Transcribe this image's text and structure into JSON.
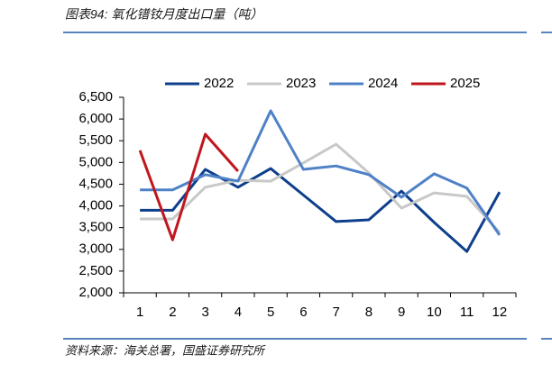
{
  "chart_data": {
    "type": "line",
    "title": "图表94: 氧化镨钕月度出口量（吨）",
    "source": "资料来源：海关总署，国盛证券研究所",
    "categories": [
      "1",
      "2",
      "3",
      "4",
      "5",
      "6",
      "7",
      "8",
      "9",
      "10",
      "11",
      "12"
    ],
    "series": [
      {
        "name": "2022",
        "color": "#0e3f8c",
        "values": [
          3900,
          3900,
          4840,
          4430,
          4860,
          4250,
          3640,
          3680,
          4340,
          3620,
          2950,
          4320
        ]
      },
      {
        "name": "2023",
        "color": "#c8c8c8",
        "values": [
          3700,
          3700,
          4430,
          4590,
          4570,
          4990,
          5420,
          4760,
          3950,
          4300,
          4220,
          3390
        ]
      },
      {
        "name": "2024",
        "color": "#4f81c7",
        "values": [
          4370,
          4370,
          4720,
          4570,
          6190,
          4840,
          4920,
          4720,
          4200,
          4740,
          4410,
          3330
        ]
      },
      {
        "name": "2025",
        "color": "#c0161d",
        "values": [
          5280,
          3220,
          5650,
          4800,
          null,
          null,
          null,
          null,
          null,
          null,
          null,
          null
        ]
      }
    ],
    "ylim": [
      2000,
      6500
    ],
    "yticks": [
      {
        "value": 2000,
        "label": "2,000"
      },
      {
        "value": 2500,
        "label": "2,500"
      },
      {
        "value": 3000,
        "label": "3,000"
      },
      {
        "value": 3500,
        "label": "3,500"
      },
      {
        "value": 4000,
        "label": "4,000"
      },
      {
        "value": 4500,
        "label": "4,500"
      },
      {
        "value": 5000,
        "label": "5,000"
      },
      {
        "value": 5500,
        "label": "5,500"
      },
      {
        "value": 6000,
        "label": "6,000"
      },
      {
        "value": 6500,
        "label": "6,500"
      }
    ],
    "legend": "top",
    "grid": false
  }
}
